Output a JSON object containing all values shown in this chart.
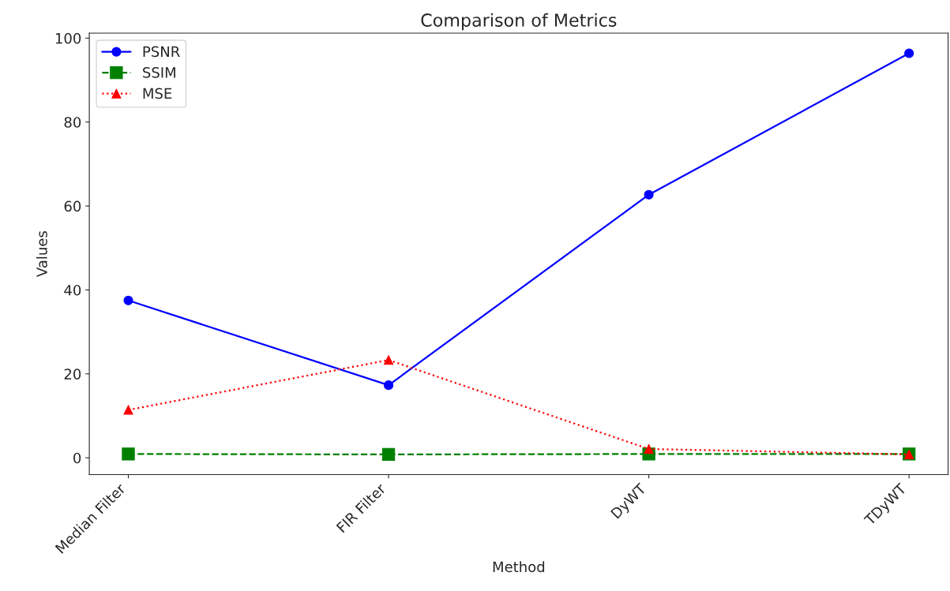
{
  "chart_data": {
    "type": "line",
    "title": "Comparison of Metrics",
    "xlabel": "Method",
    "ylabel": "Values",
    "categories": [
      "Median Filter",
      "FIR Filter",
      "DyWT",
      "TDyWT"
    ],
    "series": [
      {
        "name": "PSNR",
        "color": "#0000ff",
        "marker": "circle",
        "line_style": "solid",
        "values": [
          37.5,
          17.3,
          62.7,
          96.4
        ]
      },
      {
        "name": "SSIM",
        "color": "#008000",
        "marker": "square",
        "line_style": "dashed",
        "values": [
          0.9,
          0.8,
          0.9,
          0.9
        ]
      },
      {
        "name": "MSE",
        "color": "#ff0000",
        "marker": "triangle",
        "line_style": "dotted",
        "values": [
          11.4,
          23.3,
          2.1,
          0.8
        ]
      }
    ],
    "ylim": [
      -4,
      101.2
    ],
    "yticks": [
      0,
      20,
      40,
      60,
      80,
      100
    ],
    "grid": false,
    "legend": "top left"
  }
}
